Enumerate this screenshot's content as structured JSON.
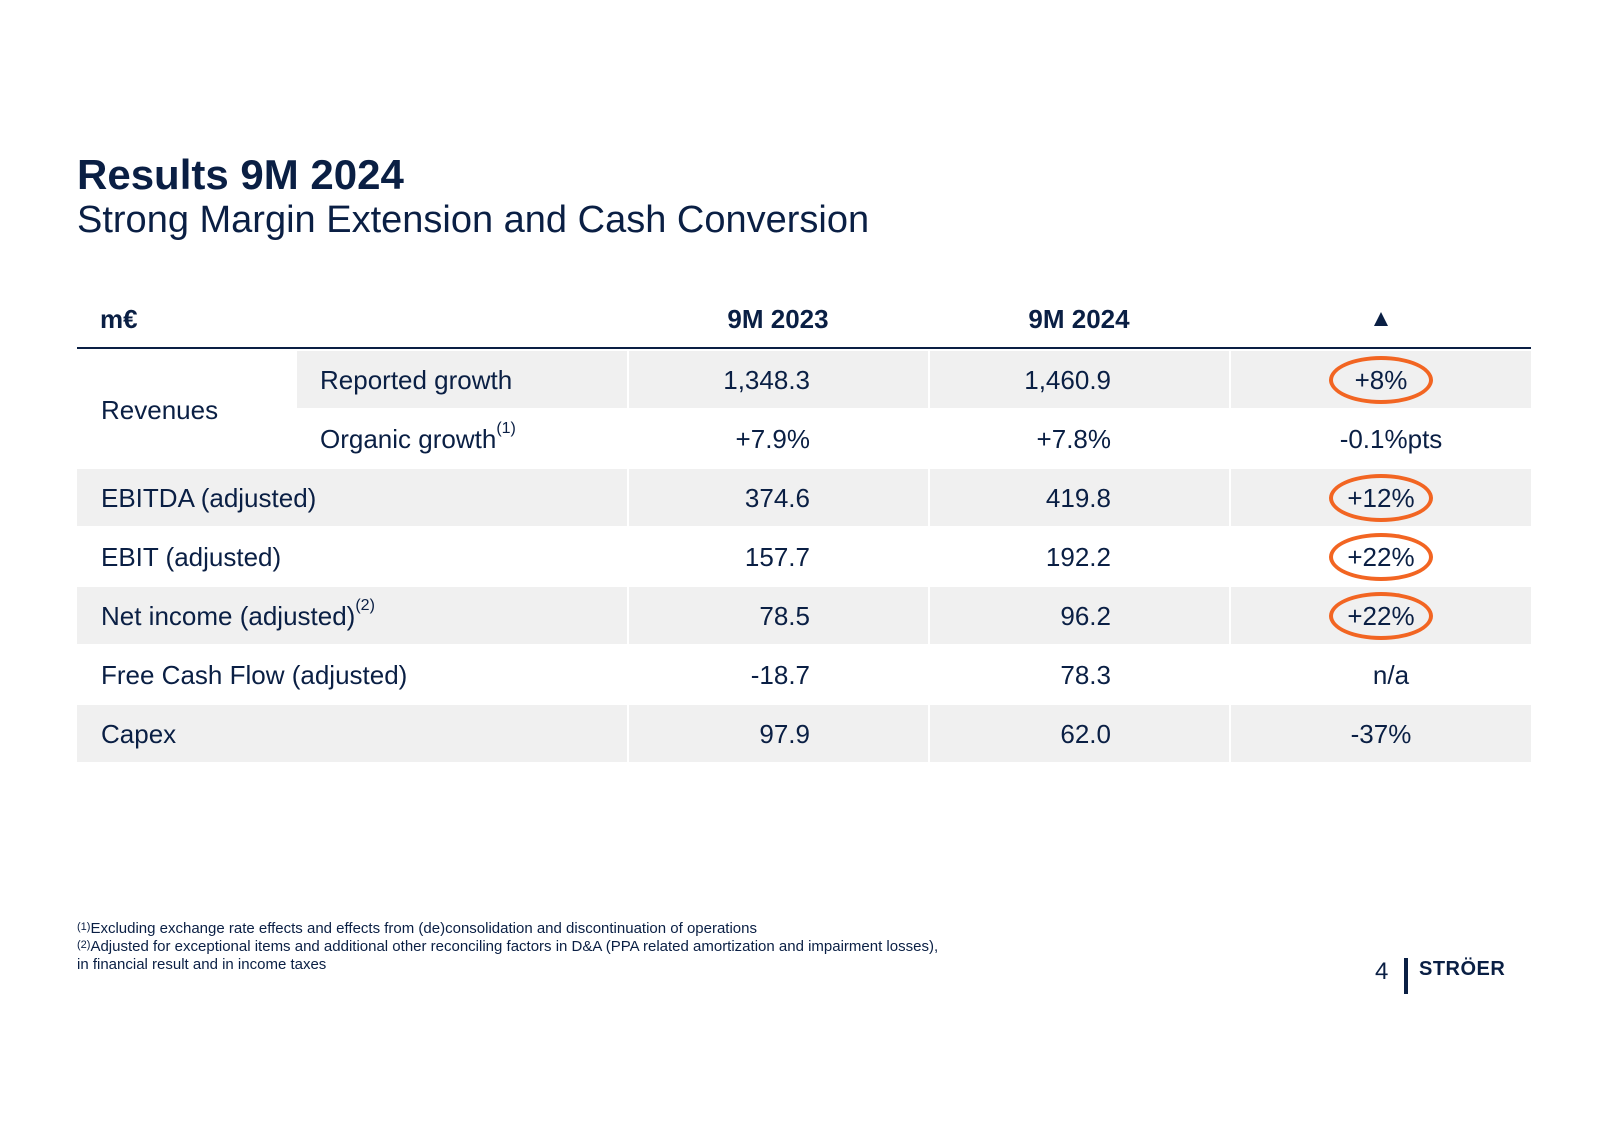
{
  "title": "Results 9M 2024",
  "subtitle": "Strong Margin Extension and Cash Conversion",
  "colors": {
    "navy": "#0a1f44",
    "shade": "#f0f0f0",
    "highlight_ring": "#f26522"
  },
  "table": {
    "header": {
      "label": "m€",
      "col1": "9M 2023",
      "col2": "9M 2024",
      "col3": "▲"
    },
    "revenues": {
      "label": "Revenues",
      "reported": {
        "label": "Reported growth",
        "v1": "1,348.3",
        "v2": "1,460.9",
        "delta": "+8%",
        "highlighted": true
      },
      "organic": {
        "label": "Organic growth",
        "note": "(1)",
        "v1": "+7.9%",
        "v2": "+7.8%",
        "delta": "-0.1%pts",
        "highlighted": false
      }
    },
    "rows": [
      {
        "label": "EBITDA (adjusted)",
        "note": "",
        "v1": "374.6",
        "v2": "419.8",
        "delta": "+12%",
        "highlighted": true
      },
      {
        "label": "EBIT (adjusted)",
        "note": "",
        "v1": "157.7",
        "v2": "192.2",
        "delta": "+22%",
        "highlighted": true
      },
      {
        "label": "Net income (adjusted)",
        "note": "(2)",
        "v1": "78.5",
        "v2": "96.2",
        "delta": "+22%",
        "highlighted": true
      },
      {
        "label": "Free Cash Flow (adjusted)",
        "note": "",
        "v1": "-18.7",
        "v2": "78.3",
        "delta": "n/a",
        "highlighted": false
      },
      {
        "label": "Capex",
        "note": "",
        "v1": "97.9",
        "v2": "62.0",
        "delta": "-37%",
        "highlighted": false
      }
    ]
  },
  "footnotes": {
    "fn1_mark": "(1)",
    "fn1": "Excluding exchange rate effects and effects from (de)consolidation and discontinuation of operations",
    "fn2_mark": "(2)",
    "fn2_line1": "Adjusted for exceptional items and additional other reconciling factors in D&A (PPA related amortization and impairment losses),",
    "fn2_line2": "in financial result and in income taxes"
  },
  "page_number": "4",
  "logo_text": "STRÖER"
}
